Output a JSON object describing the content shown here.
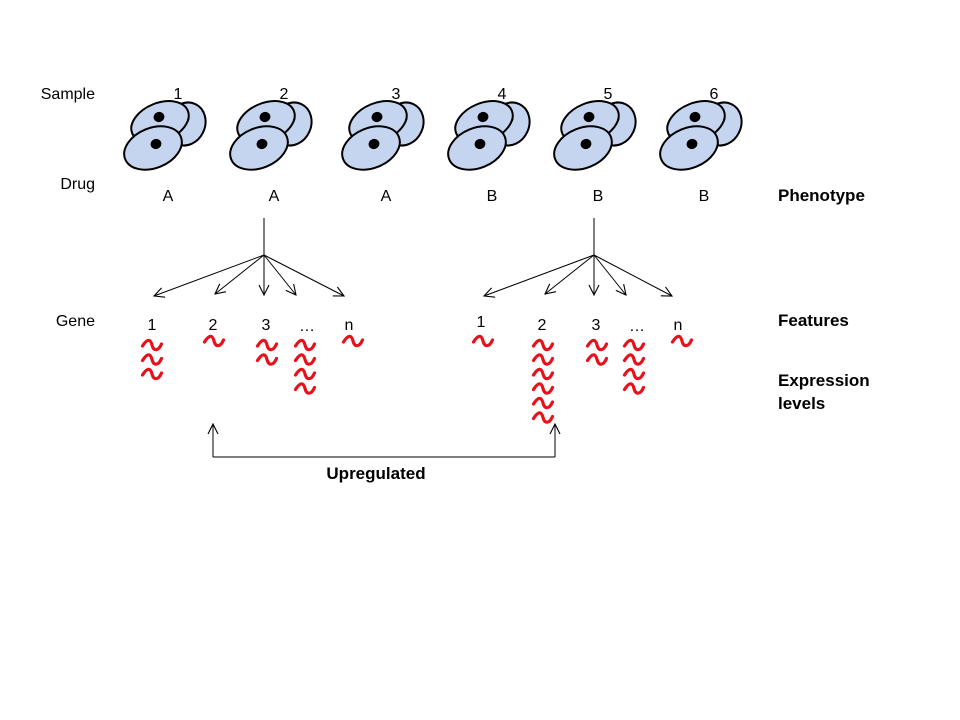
{
  "diagram": {
    "row_labels": {
      "sample": "Sample",
      "drug": "Drug",
      "gene": "Gene"
    },
    "side_labels": {
      "phenotype": "Phenotype",
      "features": "Features",
      "expression_line1": "Expression",
      "expression_line2": "levels"
    },
    "samples": [
      {
        "number": "1",
        "drug": "A"
      },
      {
        "number": "2",
        "drug": "A"
      },
      {
        "number": "3",
        "drug": "A"
      },
      {
        "number": "4",
        "drug": "B"
      },
      {
        "number": "5",
        "drug": "B"
      },
      {
        "number": "6",
        "drug": "B"
      }
    ],
    "gene_groups": [
      {
        "genes": [
          {
            "label": "1",
            "expression_level": 3
          },
          {
            "label": "2",
            "expression_level": 1
          },
          {
            "label": "3",
            "expression_level": 2
          },
          {
            "label": "…",
            "expression_level": 4
          },
          {
            "label": "n",
            "expression_level": 1
          }
        ]
      },
      {
        "genes": [
          {
            "label": "1",
            "expression_level": 1
          },
          {
            "label": "2",
            "expression_level": 6
          },
          {
            "label": "3",
            "expression_level": 2
          },
          {
            "label": "…",
            "expression_level": 4
          },
          {
            "label": "n",
            "expression_level": 1
          }
        ]
      }
    ],
    "comparison_label": "Upregulated",
    "colors": {
      "cell_fill": "#c5d5ef",
      "cell_outline": "#000000",
      "nucleus": "#000000",
      "expression_wave": "#e8101a",
      "lines": "#000000"
    }
  }
}
